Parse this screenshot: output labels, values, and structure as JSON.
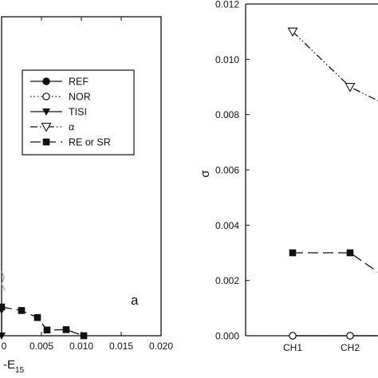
{
  "chart_data": [
    {
      "type": "line",
      "panel_label": "a",
      "xlabel_prefix": "-E",
      "xlabel_sub": "15",
      "x_ticks": [
        0,
        0.005,
        0.01,
        0.015,
        0.02
      ],
      "x_tick_labels": [
        "0",
        "0.005",
        "0.010",
        "0.015",
        "0.020"
      ],
      "xlim": [
        0,
        0.02
      ],
      "ylim": [
        0,
        1
      ],
      "legend": {
        "placement": "inside-center",
        "entries": [
          {
            "label": "REF",
            "marker": "circle-filled",
            "dash": "solid"
          },
          {
            "label": "NOR",
            "marker": "circle-open",
            "dash": "dotted"
          },
          {
            "label": "TISI",
            "marker": "triangle-down-filled",
            "dash": "solid"
          },
          {
            "label": "α",
            "marker": "triangle-down-open",
            "dash": "dashdotdot"
          },
          {
            "label": "RE or SR",
            "marker": "square-filled",
            "dash": "longdash"
          }
        ]
      },
      "series": [
        {
          "label": "RE or SR",
          "marker": "square-filled",
          "dash": "longdash",
          "x": [
            0.0,
            0.0025,
            0.0045,
            0.0057,
            0.0081,
            0.0103
          ],
          "y": [
            0.09,
            0.079,
            0.057,
            0.018,
            0.019,
            0.0
          ]
        },
        {
          "label": "TISI",
          "marker": "triangle-down-filled",
          "dash": "solid",
          "x": [
            0.0,
            0.0
          ],
          "y": [
            0.08,
            0.0
          ]
        }
      ]
    },
    {
      "type": "line",
      "ylabel": "σ",
      "categories": [
        "CH1",
        "CH2"
      ],
      "ylim": [
        0,
        0.012
      ],
      "y_ticks": [
        0,
        0.002,
        0.004,
        0.006,
        0.008,
        0.01,
        0.012
      ],
      "y_tick_labels": [
        "0.000",
        "0.002",
        "0.004",
        "0.006",
        "0.008",
        "0.010",
        "0.012"
      ],
      "series": [
        {
          "label": "α",
          "marker": "triangle-down-open",
          "dash": "dashdotdot",
          "values": [
            0.011,
            0.009
          ],
          "tail_to": 0.0085
        },
        {
          "label": "RE or SR",
          "marker": "square-filled",
          "dash": "longdash",
          "values": [
            0.003,
            0.003
          ],
          "tail_to": 0.0023
        },
        {
          "label": "REF",
          "marker": "circle-filled",
          "dash": "solid",
          "values": [
            0.0,
            0.0
          ],
          "tail_to": 0.0
        },
        {
          "label": "NOR",
          "marker": "circle-open",
          "dash": "dotted",
          "values": [
            0.0,
            0.0
          ],
          "tail_to": 0.0
        }
      ]
    }
  ]
}
